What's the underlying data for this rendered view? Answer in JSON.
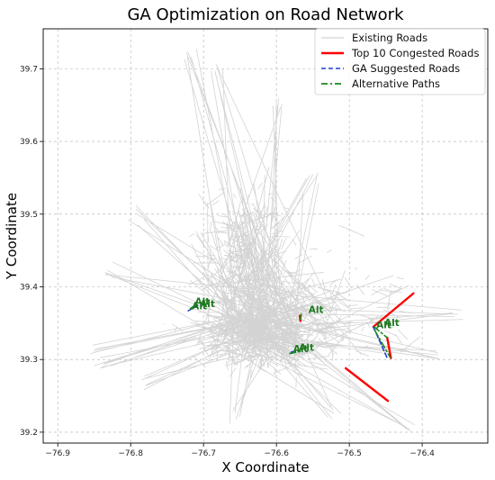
{
  "chart_data": {
    "type": "line",
    "title": "GA Optimization on Road Network",
    "xlabel": "X Coordinate",
    "ylabel": "Y Coordinate",
    "xlim": [
      -76.92,
      -76.31
    ],
    "ylim": [
      39.185,
      39.755
    ],
    "x_ticks": [
      -76.9,
      -76.8,
      -76.7,
      -76.6,
      -76.5,
      -76.4
    ],
    "x_tick_labels": [
      "−76.9",
      "−76.8",
      "−76.7",
      "−76.6",
      "−76.5",
      "−76.4"
    ],
    "y_ticks": [
      39.2,
      39.3,
      39.4,
      39.5,
      39.6,
      39.7
    ],
    "y_tick_labels": [
      "39.2",
      "39.3",
      "39.4",
      "39.5",
      "39.6",
      "39.7"
    ],
    "grid": true,
    "legend_position": "top-right",
    "colors": {
      "existing_roads": "#d3d3d3",
      "congested": "#ff0000",
      "ga_suggested": "#1f3fd6",
      "alternative": "#1a8a1a"
    },
    "series": [
      {
        "name": "Existing Roads",
        "style": "solid",
        "note_count": 3,
        "segments": [
          [
            [
              -76.85,
              39.33
            ],
            [
              -76.45,
              39.32
            ]
          ],
          [
            [
              -76.7,
              39.75
            ],
            [
              -76.65,
              39.2
            ]
          ]
        ]
      },
      {
        "name": "Top 10 Congested Roads",
        "style": "solid",
        "segments": [
          [
            [
              -76.467,
              39.345
            ],
            [
              -76.412,
              39.391
            ]
          ],
          [
            [
              -76.505,
              39.288
            ],
            [
              -76.447,
              39.243
            ]
          ],
          [
            [
              -76.448,
              39.33
            ],
            [
              -76.443,
              39.302
            ]
          ],
          [
            [
              -76.567,
              39.353
            ],
            [
              -76.568,
              39.36
            ]
          ]
        ]
      },
      {
        "name": "GA Suggested Roads",
        "style": "dashed",
        "segments": [
          [
            [
              -76.721,
              39.367
            ],
            [
              -76.708,
              39.375
            ]
          ],
          [
            [
              -76.467,
              39.345
            ],
            [
              -76.448,
              39.302
            ]
          ],
          [
            [
              -76.58,
              39.31
            ],
            [
              -76.57,
              39.312
            ]
          ]
        ]
      },
      {
        "name": "Alternative Paths",
        "style": "dashdot",
        "segments": [
          [
            [
              -76.718,
              39.37
            ],
            [
              -76.71,
              39.376
            ]
          ],
          [
            [
              -76.465,
              39.34
            ],
            [
              -76.444,
              39.303
            ]
          ],
          [
            [
              -76.466,
              39.345
            ],
            [
              -76.448,
              39.33
            ]
          ],
          [
            [
              -76.582,
              39.308
            ],
            [
              -76.568,
              39.311
            ]
          ],
          [
            [
              -76.567,
              39.355
            ],
            [
              -76.566,
              39.362
            ]
          ]
        ]
      }
    ],
    "annotations": [
      {
        "text": "Alt",
        "x": -76.705,
        "y": 39.372
      },
      {
        "text": "Alt",
        "x": -76.712,
        "y": 39.375
      },
      {
        "text": "Alt",
        "x": -76.716,
        "y": 39.369
      },
      {
        "text": "Alt",
        "x": -76.556,
        "y": 39.364
      },
      {
        "text": "Alt",
        "x": -76.569,
        "y": 39.312
      },
      {
        "text": "Alt",
        "x": -76.577,
        "y": 39.31
      },
      {
        "text": "Alt",
        "x": -76.452,
        "y": 39.346
      },
      {
        "text": "Alt",
        "x": -76.463,
        "y": 39.343
      }
    ],
    "background_roads_seed": 71
  }
}
